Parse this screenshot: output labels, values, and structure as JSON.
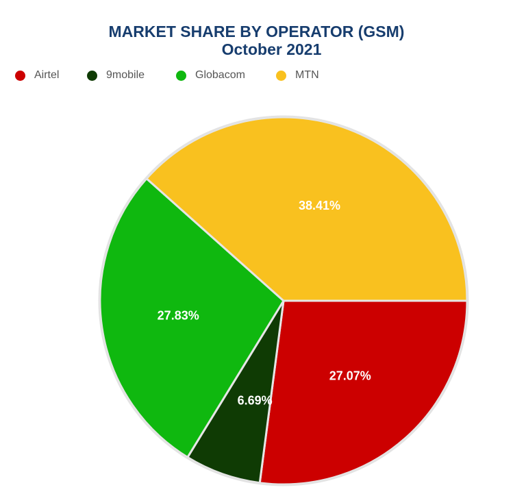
{
  "title": "MARKET SHARE BY OPERATOR (GSM)",
  "subtitle": "October 2021",
  "legend": [
    {
      "label": "Airtel",
      "color": "#cc0000"
    },
    {
      "label": "9mobile",
      "color": "#0f3b04"
    },
    {
      "label": "Globacom",
      "color": "#0fb80f"
    },
    {
      "label": "MTN",
      "color": "#f9c11f"
    }
  ],
  "chart_data": {
    "type": "pie",
    "title": "MARKET SHARE BY OPERATOR (GSM)",
    "subtitle": "October 2021",
    "legend_position": "top-left",
    "slices": [
      {
        "label": "Airtel",
        "value": 27.07,
        "display": "27.07%",
        "color": "#cc0000"
      },
      {
        "label": "9mobile",
        "value": 6.69,
        "display": "6.69%",
        "color": "#0f3b04"
      },
      {
        "label": "Globacom",
        "value": 27.83,
        "display": "27.83%",
        "color": "#0fb80f"
      },
      {
        "label": "MTN",
        "value": 38.41,
        "display": "38.41%",
        "color": "#f9c11f"
      }
    ]
  }
}
